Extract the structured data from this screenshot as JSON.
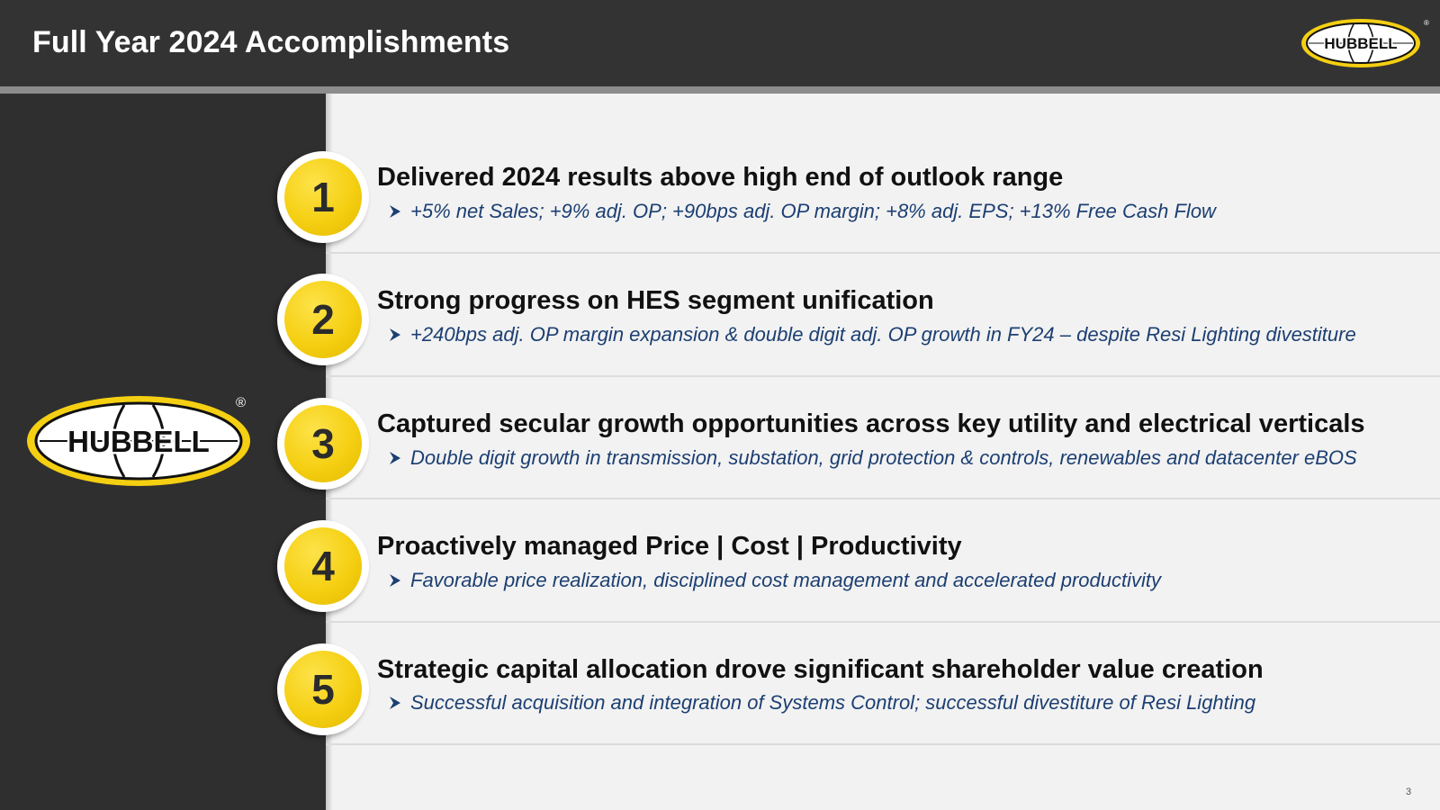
{
  "header": {
    "title": "Full Year 2024 Accomplishments",
    "logo_text": "HUBBELL"
  },
  "sidebar": {
    "logo_text": "HUBBELL",
    "registered_mark": "®"
  },
  "accomplishments": [
    {
      "number": "1",
      "title": "Delivered 2024 results above high end of outlook range",
      "detail": "+5% net Sales; +9% adj. OP; +90bps adj. OP margin; +8% adj. EPS; +13% Free Cash Flow"
    },
    {
      "number": "2",
      "title": "Strong progress on HES segment unification",
      "detail": "+240bps adj. OP margin expansion & double digit adj. OP growth in FY24 – despite Resi Lighting divestiture"
    },
    {
      "number": "3",
      "title": "Captured secular growth opportunities across key utility and electrical verticals",
      "detail": "Double digit growth in transmission, substation, grid protection & controls, renewables and datacenter eBOS"
    },
    {
      "number": "4",
      "title": "Proactively managed Price | Cost | Productivity",
      "detail": "Favorable price realization, disciplined cost management and accelerated productivity"
    },
    {
      "number": "5",
      "title": "Strategic capital allocation drove significant shareholder value creation",
      "detail": "Successful acquisition and integration of Systems Control; successful divestiture of Resi Lighting"
    }
  ],
  "footer": {
    "page_number": "3"
  },
  "colors": {
    "header_bg": "#333333",
    "panel_bg": "#2f2f2f",
    "content_bg": "#f2f2f2",
    "accent_yellow": "#f5cf12",
    "detail_text": "#1c3f72"
  }
}
